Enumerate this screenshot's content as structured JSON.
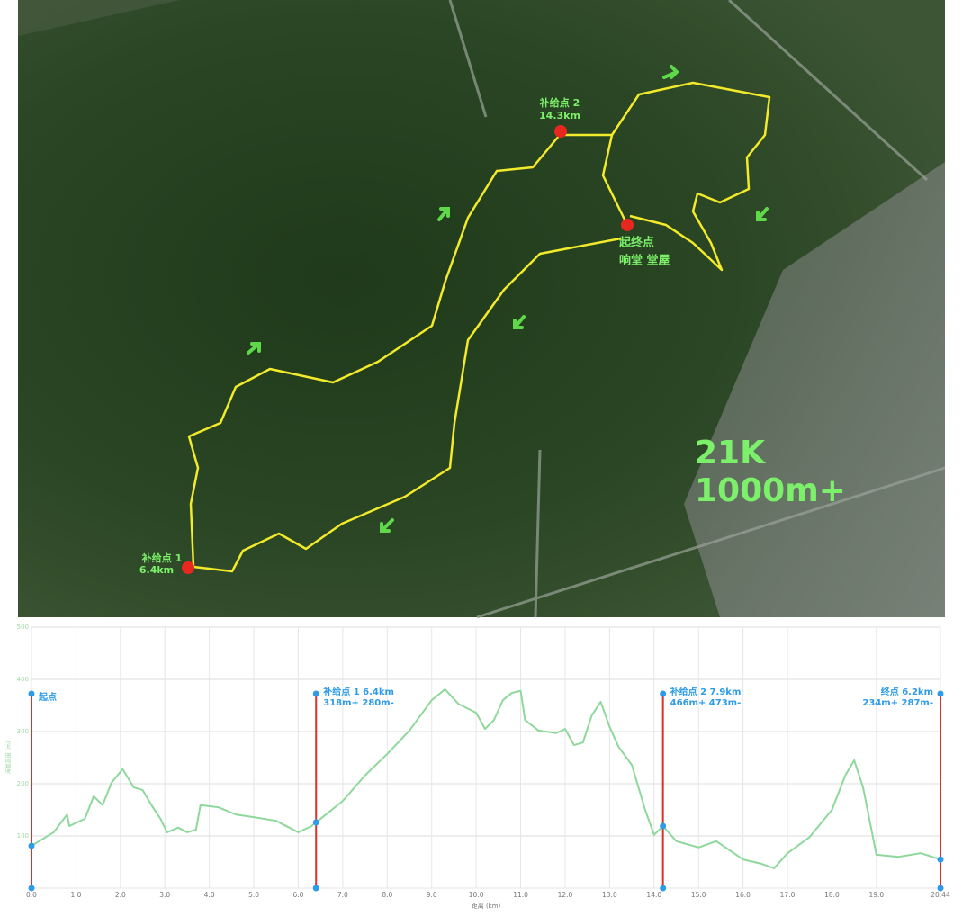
{
  "map": {
    "supply2": {
      "name": "补给点 2",
      "distance": "14.3km"
    },
    "start_finish": {
      "name": "起终点",
      "place": "响堂 堂屋"
    },
    "supply1": {
      "name": "补给点 1",
      "distance": "6.4km"
    },
    "summary": {
      "distance": "21K",
      "climb": "1000m+"
    }
  },
  "chart_data": {
    "type": "line",
    "xlabel": "距离 (km)",
    "ylabel": "海拔高度 (m)",
    "x": [
      0,
      0.5,
      0.8,
      0.85,
      1.2,
      1.4,
      1.6,
      1.8,
      2.05,
      2.3,
      2.5,
      2.7,
      2.9,
      3.05,
      3.3,
      3.5,
      3.7,
      3.8,
      4.2,
      4.6,
      5.0,
      5.5,
      6.0,
      6.3,
      6.4,
      7.0,
      7.5,
      8.0,
      8.5,
      9.0,
      9.3,
      9.6,
      10.0,
      10.2,
      10.4,
      10.6,
      10.8,
      11.0,
      11.1,
      11.4,
      11.8,
      12.0,
      12.2,
      12.4,
      12.6,
      12.8,
      13.0,
      13.2,
      13.5,
      13.8,
      14.0,
      14.2,
      14.5,
      15.0,
      15.4,
      16.0,
      16.4,
      16.7,
      17.0,
      17.5,
      18.0,
      18.3,
      18.5,
      18.7,
      19.0,
      19.5,
      20.0,
      20.44
    ],
    "series": [
      {
        "color": "#8fd89b",
        "values": [
          81,
          107,
          141,
          119,
          133,
          176,
          159,
          202,
          228,
          193,
          188,
          159,
          133,
          107,
          116,
          107,
          112,
          159,
          155,
          141,
          136,
          129,
          107,
          119,
          126,
          167,
          216,
          257,
          302,
          360,
          381,
          353,
          336,
          305,
          322,
          360,
          374,
          378,
          322,
          302,
          297,
          305,
          274,
          279,
          331,
          357,
          309,
          271,
          236,
          150,
          102,
          119,
          90,
          78,
          90,
          55,
          47,
          38,
          67,
          98,
          150,
          216,
          245,
          193,
          64,
          60,
          67,
          55
        ]
      }
    ],
    "xlim": [
      0,
      20.44
    ],
    "ylim": [
      0,
      500
    ],
    "xticks": [
      {
        "value": 0,
        "label": "0.0"
      },
      {
        "value": 1,
        "label": "1.0"
      },
      {
        "value": 2,
        "label": "2.0"
      },
      {
        "value": 3,
        "label": "3.0"
      },
      {
        "value": 4,
        "label": "4.0"
      },
      {
        "value": 5,
        "label": "5.0"
      },
      {
        "value": 6,
        "label": "6.0"
      },
      {
        "value": 7,
        "label": "7.0"
      },
      {
        "value": 8,
        "label": "8.0"
      },
      {
        "value": 9,
        "label": "9.0"
      },
      {
        "value": 10,
        "label": "10.0"
      },
      {
        "value": 11,
        "label": "11.0"
      },
      {
        "value": 12,
        "label": "12.0"
      },
      {
        "value": 13,
        "label": "13.0"
      },
      {
        "value": 14,
        "label": "14.0"
      },
      {
        "value": 15,
        "label": "15.0"
      },
      {
        "value": 16,
        "label": "16.0"
      },
      {
        "value": 17,
        "label": "17.0"
      },
      {
        "value": 18,
        "label": "18.0"
      },
      {
        "value": 19,
        "label": "19.0"
      },
      20.44
    ],
    "yticks": [
      100,
      200,
      300,
      400,
      500
    ],
    "grid": true,
    "markers": [
      {
        "x": 0,
        "lines": [
          "起点"
        ]
      },
      {
        "x": 6.4,
        "lines": [
          "补给点 1   6.4km",
          "318m+ 280m-"
        ]
      },
      {
        "x": 14.2,
        "lines": [
          "补给点 2   7.9km",
          "466m+ 473m-"
        ]
      },
      {
        "x": 20.44,
        "lines": [
          "终点   6.2km",
          "234m+ 287m-"
        ]
      }
    ]
  }
}
